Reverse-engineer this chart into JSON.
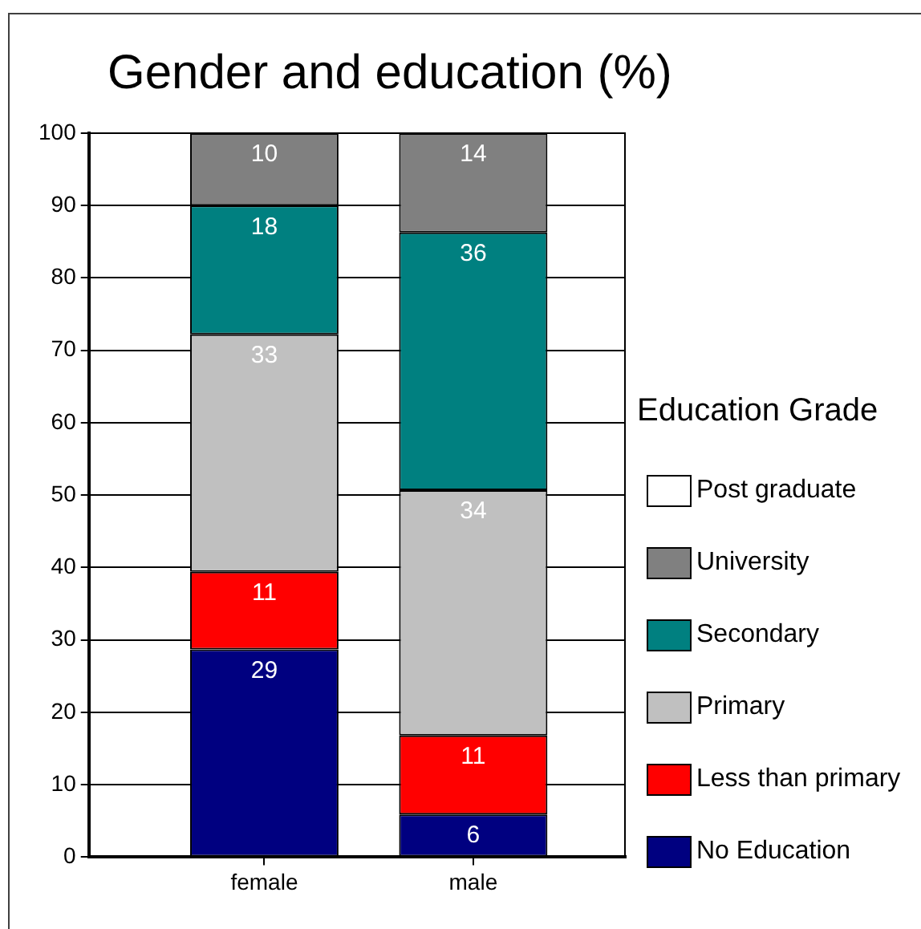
{
  "chart_data": {
    "type": "bar",
    "title": "Gender and education (%)",
    "legend_title": "Education Grade",
    "categories": [
      "female",
      "male"
    ],
    "stacked": true,
    "series": [
      {
        "name": "No Education",
        "color": "#000080",
        "values": [
          28.7,
          5.9
        ],
        "value_labels": [
          "29",
          "6"
        ]
      },
      {
        "name": "Less than primary",
        "color": "#ff0000",
        "values": [
          10.7,
          10.9
        ],
        "value_labels": [
          "11",
          "11"
        ]
      },
      {
        "name": "Primary",
        "color": "#c0c0c0",
        "values": [
          32.8,
          33.9
        ],
        "value_labels": [
          "33",
          "34"
        ]
      },
      {
        "name": "Secondary",
        "color": "#008080",
        "values": [
          17.8,
          35.6
        ],
        "value_labels": [
          "18",
          "36"
        ]
      },
      {
        "name": "University",
        "color": "#808080",
        "values": [
          10.0,
          13.7
        ],
        "value_labels": [
          "10",
          "14"
        ]
      },
      {
        "name": "Post graduate",
        "color": "#ffffff",
        "values": [
          null,
          null
        ]
      }
    ],
    "ylim": [
      0,
      100
    ],
    "yticks": [
      0,
      10,
      20,
      30,
      40,
      50,
      60,
      70,
      80,
      90,
      100
    ],
    "grid": "y",
    "legend": "right"
  }
}
